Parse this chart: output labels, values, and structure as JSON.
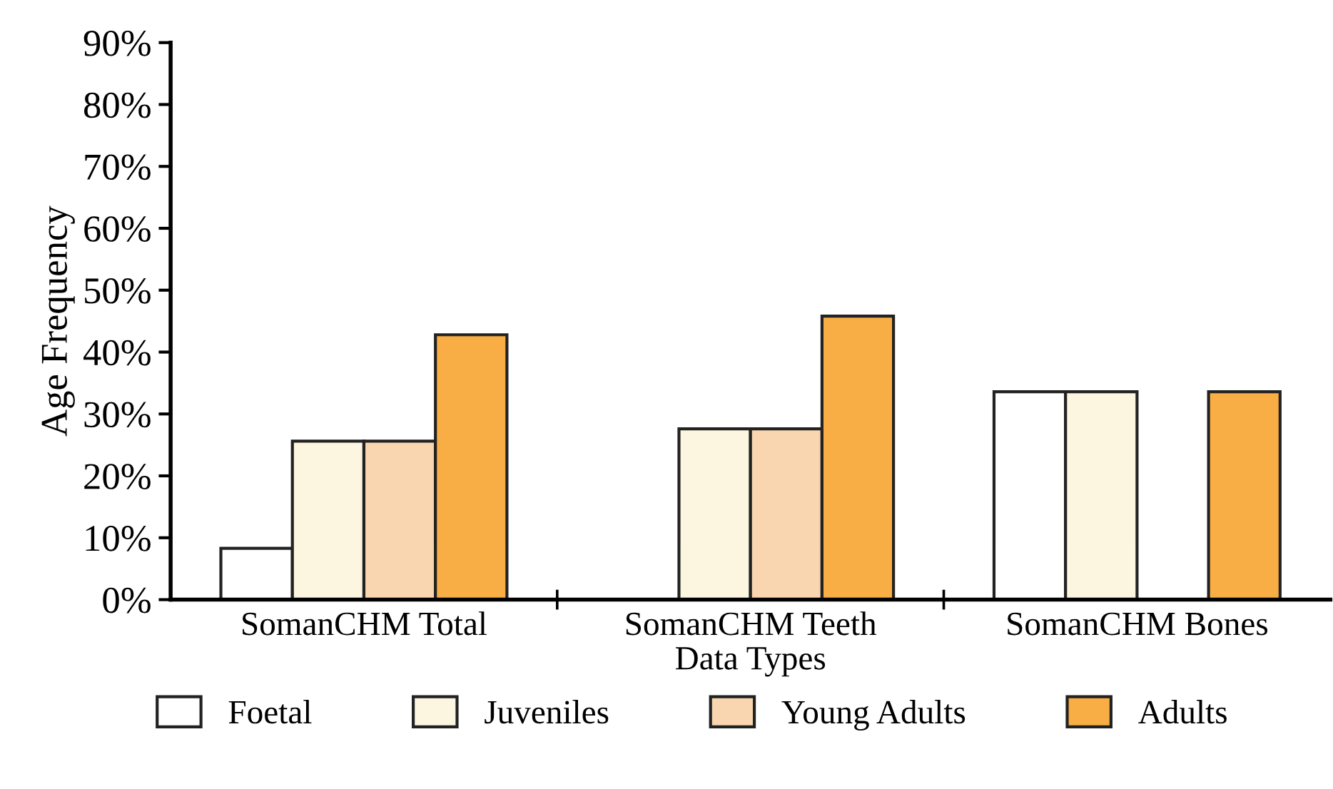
{
  "chart_data": {
    "type": "bar",
    "xlabel": "Data Types",
    "ylabel": "Age Frequency",
    "categories": [
      "SomanCHM Total",
      "SomanCHM Teeth",
      "SomanCHM Bones"
    ],
    "series": [
      {
        "name": "Foetal",
        "color": "#ffffff",
        "values": [
          8.3,
          null,
          33.6
        ]
      },
      {
        "name": "Juveniles",
        "color": "#fcf6e0",
        "values": [
          25.6,
          27.6,
          33.6
        ]
      },
      {
        "name": "Young Adults",
        "color": "#fad6b0",
        "values": [
          25.6,
          27.6,
          null
        ]
      },
      {
        "name": "Adults",
        "color": "#f9ad45",
        "values": [
          42.8,
          45.8,
          33.6
        ]
      }
    ],
    "ylim": [
      0,
      90
    ],
    "yticks": [
      {
        "value": 0,
        "label": "0%"
      },
      {
        "value": 10,
        "label": "10%"
      },
      {
        "value": 20,
        "label": "20%"
      },
      {
        "value": 30,
        "label": "30%"
      },
      {
        "value": 40,
        "label": "40%"
      },
      {
        "value": 50,
        "label": "50%"
      },
      {
        "value": 60,
        "label": "60%"
      },
      {
        "value": 70,
        "label": "70%"
      },
      {
        "value": 80,
        "label": "80%"
      },
      {
        "value": 90,
        "label": "90%"
      }
    ],
    "grid": false,
    "legend": "bottom"
  }
}
